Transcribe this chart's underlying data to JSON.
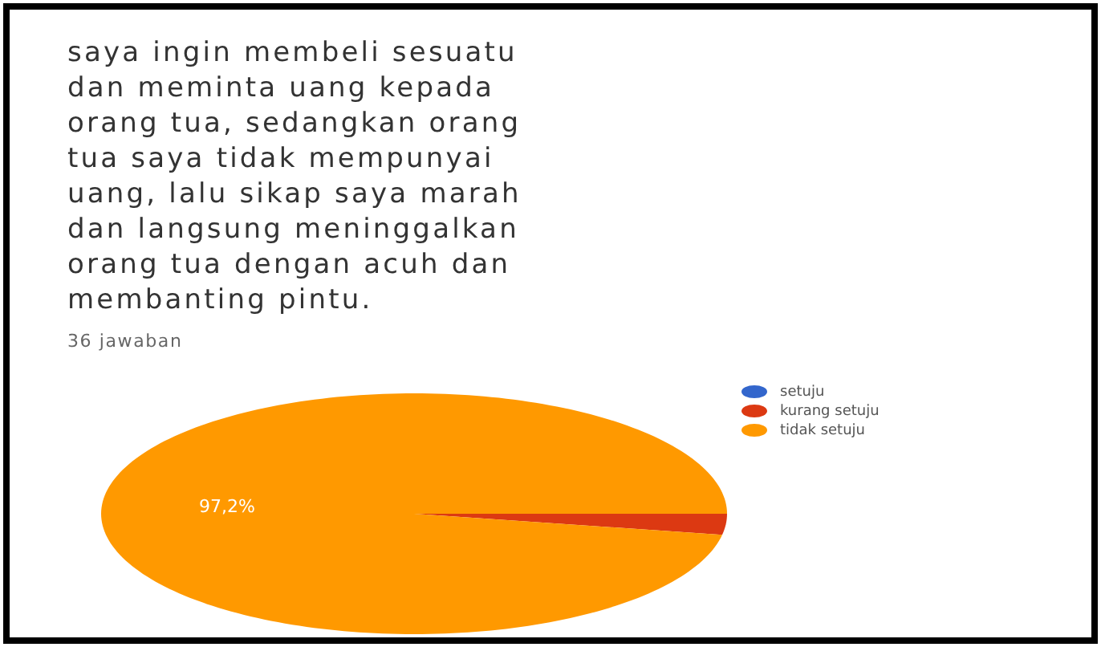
{
  "chart_data": {
    "type": "pie",
    "title": "saya ingin membeli sesuatu dan meminta uang kepada orang tua, sedangkan orang tua saya tidak mempunyai uang, lalu sikap saya marah dan langsung meninggalkan orang tua dengan acuh dan membanting pintu.",
    "subtitle": "36 jawaban",
    "categories": [
      "setuju",
      "kurang setuju",
      "tidak setuju"
    ],
    "values": [
      0,
      2.8,
      97.2
    ],
    "colors": [
      "#3366cc",
      "#dc3912",
      "#ff9900"
    ],
    "value_labels": [
      null,
      null,
      "97,2%"
    ],
    "legend": "right"
  }
}
